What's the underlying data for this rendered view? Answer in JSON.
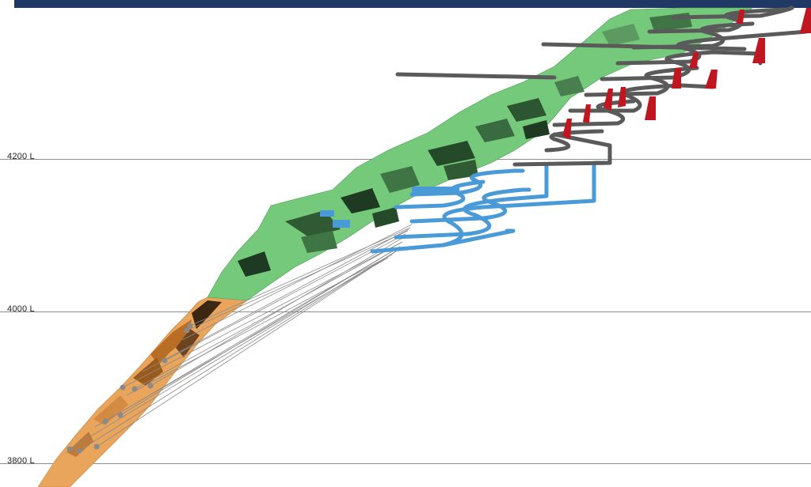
{
  "levels": [
    {
      "label": "4200 L"
    },
    {
      "label": "4000 L"
    },
    {
      "label": "3800 L"
    }
  ],
  "colors": {
    "header": "#1f3864",
    "orebody_upper": "#74c97a",
    "orebody_lower": "#e9a55b",
    "development_lower": "#4a9ad8",
    "development_upper": "#5a5a5a",
    "raises": "#c0161f",
    "drillholes": "#8a8a8a"
  }
}
